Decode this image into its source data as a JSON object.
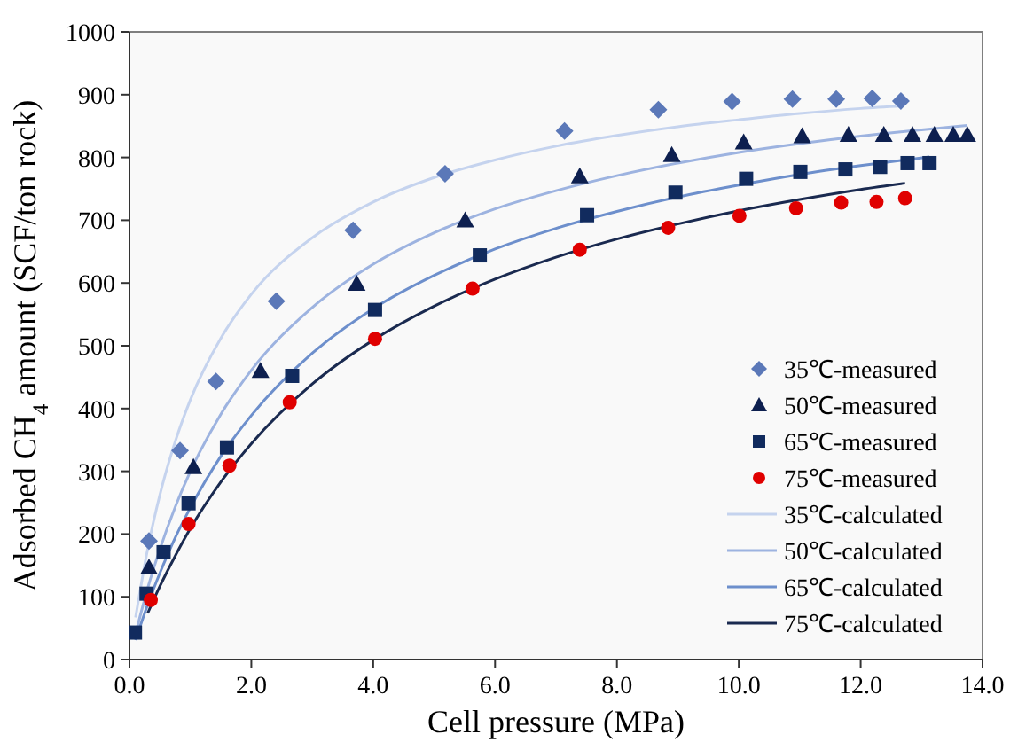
{
  "chart_data": {
    "type": "scatter",
    "xlabel": "Cell pressure (MPa)",
    "ylabel": "Adsorbed CH$_{4}$ amount (SCF/ton rock)",
    "xlim": [
      0,
      14
    ],
    "ylim": [
      0,
      1000
    ],
    "xticks": [
      {
        "value": 0,
        "label": "0.0"
      },
      {
        "value": 2,
        "label": "2.0"
      },
      {
        "value": 4,
        "label": "4.0"
      },
      {
        "value": 6,
        "label": "6.0"
      },
      {
        "value": 8,
        "label": "8.0"
      },
      {
        "value": 10,
        "label": "10.0"
      },
      {
        "value": 12,
        "label": "12.0"
      },
      {
        "value": 14,
        "label": "14.0"
      }
    ],
    "yticks": [
      0,
      100,
      200,
      300,
      400,
      500,
      600,
      700,
      800,
      900,
      1000
    ],
    "grid": false,
    "legend": "bottom right",
    "series": [
      {
        "name": "35℃-measured",
        "marker": "diamond",
        "color": "#5b78b8",
        "x": [
          0.32,
          0.83,
          1.42,
          2.41,
          3.67,
          5.18,
          7.14,
          8.68,
          9.89,
          10.88,
          11.6,
          12.19,
          12.66
        ],
        "values": [
          189,
          333,
          443,
          571,
          684,
          774,
          842,
          876,
          889,
          893,
          893,
          894,
          890
        ]
      },
      {
        "name": "50℃-measured",
        "marker": "triangle",
        "color": "#0d1f4f",
        "x": [
          0.32,
          1.05,
          2.15,
          3.73,
          5.51,
          7.39,
          8.9,
          10.08,
          11.04,
          11.8,
          12.38,
          12.85,
          13.21,
          13.52,
          13.75
        ],
        "values": [
          147,
          307,
          460,
          599,
          700,
          770,
          804,
          824,
          834,
          836,
          836,
          836,
          836,
          836,
          836
        ]
      },
      {
        "name": "65℃-measured",
        "marker": "square",
        "color": "#112b5e",
        "x": [
          0.09,
          0.28,
          0.56,
          0.97,
          1.6,
          2.67,
          4.03,
          5.75,
          7.51,
          8.96,
          10.12,
          11.01,
          11.75,
          12.32,
          12.77,
          13.13
        ],
        "values": [
          43,
          105,
          171,
          249,
          338,
          452,
          557,
          644,
          708,
          744,
          766,
          777,
          781,
          785,
          791,
          791
        ]
      },
      {
        "name": "75℃-measured",
        "marker": "circle",
        "color": "#e00000",
        "x": [
          0.35,
          0.97,
          1.64,
          2.63,
          4.03,
          5.63,
          7.39,
          8.84,
          10.01,
          10.94,
          11.68,
          12.26,
          12.73
        ],
        "values": [
          95,
          216,
          309,
          410,
          511,
          591,
          653,
          688,
          707,
          719,
          728,
          729,
          735
        ]
      },
      {
        "name": "35℃-calculated",
        "type": "line",
        "marker": "none",
        "color": "#c5d3ee",
        "x": [
          0.1,
          0.3,
          0.5,
          0.75,
          1,
          1.5,
          2,
          3,
          4,
          5,
          6,
          7,
          8,
          9,
          10,
          11,
          12,
          12.7
        ],
        "values": [
          67,
          177,
          263,
          347,
          414,
          512,
          582,
          672,
          729,
          768,
          796,
          818,
          835,
          849,
          860,
          870,
          878,
          882
        ]
      },
      {
        "name": "50℃-calculated",
        "type": "line",
        "marker": "none",
        "color": "#9db3e0",
        "x": [
          0.1,
          0.3,
          0.5,
          0.75,
          1,
          1.5,
          2,
          3,
          4,
          5,
          6,
          7,
          8,
          9,
          10,
          11,
          12,
          13,
          13.75
        ],
        "values": [
          41,
          114,
          176,
          243,
          300,
          391,
          461,
          561,
          630,
          680,
          718,
          747,
          771,
          791,
          808,
          822,
          834,
          844,
          851
        ]
      },
      {
        "name": "65℃-calculated",
        "type": "line",
        "marker": "none",
        "color": "#6d8fcc",
        "x": [
          0.1,
          0.3,
          0.5,
          0.75,
          1,
          1.5,
          2,
          3,
          4,
          5,
          6,
          7,
          8,
          9,
          10,
          11,
          12,
          13.13
        ],
        "values": [
          31,
          88,
          138,
          194,
          242,
          324,
          389,
          488,
          559,
          612,
          654,
          687,
          714,
          737,
          756,
          773,
          787,
          801
        ]
      },
      {
        "name": "75℃-calculated",
        "type": "line",
        "marker": "none",
        "color": "#1a2a50",
        "x": [
          0.3,
          0.5,
          0.75,
          1,
          1.5,
          2,
          3,
          4,
          5,
          6,
          7,
          8,
          9,
          10,
          11,
          12,
          12.73
        ],
        "values": [
          74,
          117,
          165,
          209,
          283,
          344,
          439,
          509,
          563,
          606,
          641,
          670,
          694,
          715,
          733,
          749,
          759
        ]
      }
    ]
  }
}
